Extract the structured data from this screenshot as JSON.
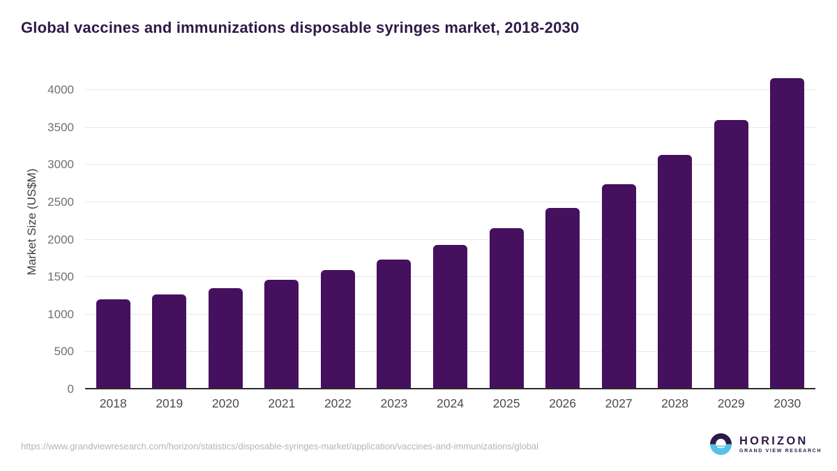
{
  "page": {
    "title": "Global vaccines and immunizations disposable syringes market, 2018-2030",
    "source_url": "https://www.grandviewresearch.com/horizon/statistics/disposable-syringes-market/application/vaccines-and-immunizations/global"
  },
  "branding": {
    "logo_icon": "horizon-sun-over-water-icon",
    "name": "HORIZON",
    "subtitle": "GRAND VIEW RESEARCH"
  },
  "colors": {
    "bar": "#45105d",
    "title_text": "#2e1a47",
    "axis_line": "#2b2b2b",
    "gridline": "#e7e7e7",
    "y_tick_label": "#707070",
    "x_tick_label": "#4c4c4c",
    "url_text": "#b4b4b4",
    "logo_purple": "#2e1a47",
    "logo_blue": "#56c1e8"
  },
  "chart_data": {
    "type": "bar",
    "title": "Global vaccines and immunizations disposable syringes market, 2018-2030",
    "xlabel": "",
    "ylabel": "Market Size (US$M)",
    "categories": [
      "2018",
      "2019",
      "2020",
      "2021",
      "2022",
      "2023",
      "2024",
      "2025",
      "2026",
      "2027",
      "2028",
      "2029",
      "2030"
    ],
    "values": [
      1200,
      1265,
      1355,
      1465,
      1590,
      1735,
      1930,
      2155,
      2420,
      2740,
      3130,
      3595,
      4160
    ],
    "yticks": [
      0,
      500,
      1000,
      1500,
      2000,
      2500,
      3000,
      3500,
      4000
    ],
    "ylim": [
      0,
      4270
    ],
    "grid": true,
    "legend_position": "none",
    "bar_color": "#45105d"
  }
}
